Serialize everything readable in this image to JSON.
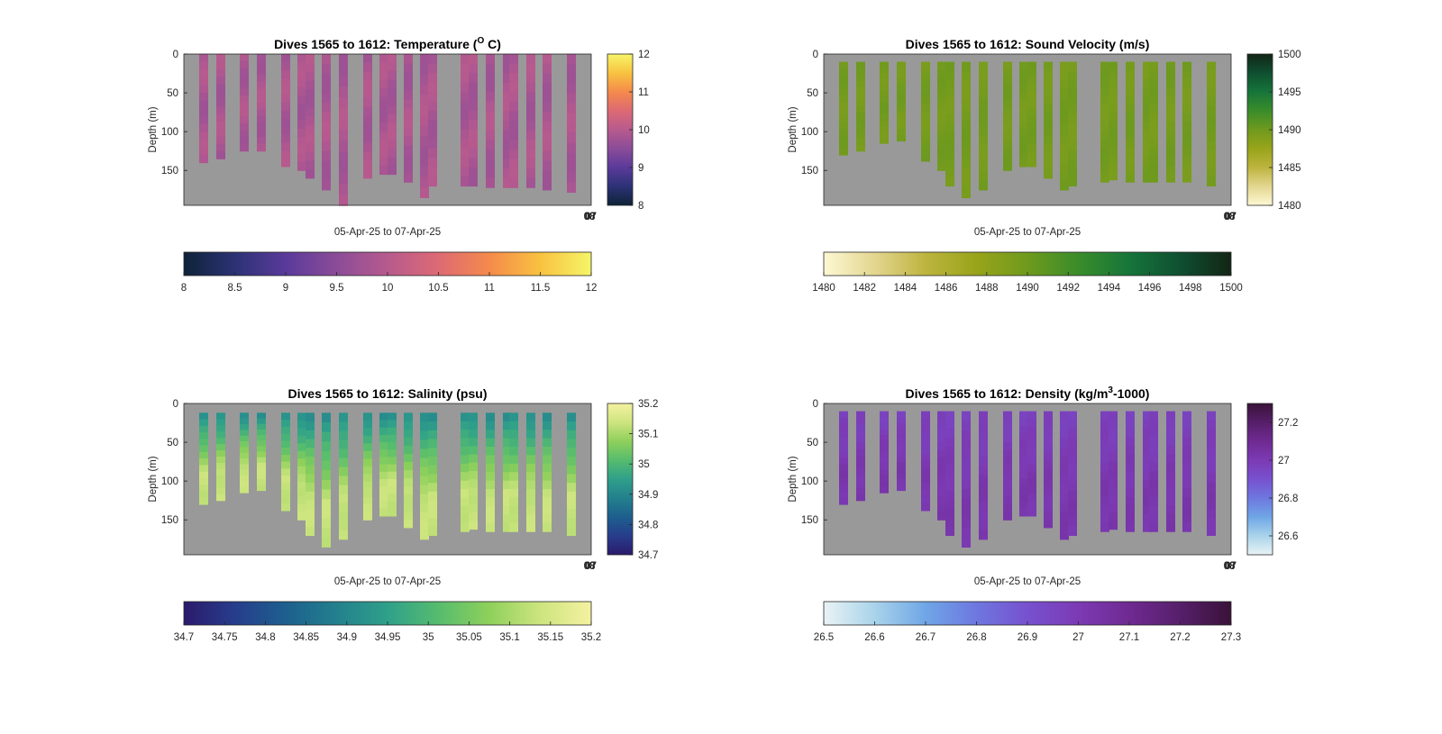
{
  "figure": {
    "background": "#ffffff",
    "land_color": "#999999"
  },
  "chart_data": [
    {
      "type": "heatmap",
      "title": "Dives 1565 to 1612: Temperature (",
      "title_sup": "O",
      "title_end": " C)",
      "xlabel": "05-Apr-25 to 07-Apr-25",
      "ylabel": "Depth (m)",
      "x_tick_labels": [
        "08",
        "07"
      ],
      "ylim": [
        0,
        195
      ],
      "y_ticks": [
        0,
        50,
        100,
        150
      ],
      "color_range": [
        8,
        12
      ],
      "side_colorbar_ticks": [
        "8",
        "9",
        "10",
        "11",
        "12"
      ],
      "bottom_colorbar_ticks": [
        "8",
        "8.5",
        "9",
        "9.5",
        "10",
        "10.5",
        "11",
        "11.5",
        "12"
      ],
      "colormap": [
        "#0d2338",
        "#2c3275",
        "#5a3a9b",
        "#8b4c98",
        "#b75a8e",
        "#dd6a74",
        "#f58a4b",
        "#f8c240",
        "#f6f569"
      ],
      "profile_value": 9.85,
      "profile_variation": 0.15,
      "profile_top": 0,
      "profile_bottoms": [
        140,
        135,
        125,
        125,
        145,
        150,
        160,
        175,
        195,
        160,
        155,
        155,
        165,
        185,
        170,
        170,
        170,
        172,
        172,
        172,
        172,
        175,
        178
      ]
    },
    {
      "type": "heatmap",
      "title": "Dives 1565 to 1612: Sound Velocity (m/s)",
      "title_sup": "",
      "title_end": "",
      "xlabel": "05-Apr-25 to 07-Apr-25",
      "ylabel": "Depth (m)",
      "x_tick_labels": [
        "08",
        "07"
      ],
      "ylim": [
        0,
        195
      ],
      "y_ticks": [
        0,
        50,
        100,
        150
      ],
      "color_range": [
        1480,
        1500
      ],
      "side_colorbar_ticks": [
        "1480",
        "1485",
        "1490",
        "1495",
        "1500"
      ],
      "bottom_colorbar_ticks": [
        "1480",
        "1482",
        "1484",
        "1486",
        "1488",
        "1490",
        "1492",
        "1494",
        "1496",
        "1498",
        "1500"
      ],
      "colormap": [
        "#fdf8d4",
        "#e3d690",
        "#bdb43f",
        "#98a41a",
        "#6f9a1e",
        "#3a8c2a",
        "#16753a",
        "#0f4f31",
        "#132515"
      ],
      "profile_value": 1489.7,
      "profile_variation": 0.4,
      "profile_top": 10,
      "profile_bottoms": [
        130,
        125,
        115,
        112,
        138,
        150,
        170,
        185,
        175,
        150,
        145,
        145,
        160,
        175,
        170,
        165,
        162,
        165,
        165,
        165,
        165,
        165,
        170
      ]
    },
    {
      "type": "heatmap",
      "title": "Dives 1565 to 1612: Salinity (psu)",
      "title_sup": "",
      "title_end": "",
      "xlabel": "05-Apr-25 to 07-Apr-25",
      "ylabel": "Depth (m)",
      "x_tick_labels": [
        "08",
        "07"
      ],
      "ylim": [
        0,
        195
      ],
      "y_ticks": [
        0,
        50,
        100,
        150
      ],
      "color_range": [
        34.7,
        35.2
      ],
      "side_colorbar_ticks": [
        "34.7",
        "34.8",
        "34.9",
        "35",
        "35.1",
        "35.2"
      ],
      "bottom_colorbar_ticks": [
        "34.7",
        "34.75",
        "34.8",
        "34.85",
        "34.9",
        "34.95",
        "35",
        "35.05",
        "35.1",
        "35.15",
        "35.2"
      ],
      "colormap": [
        "#2b1a6b",
        "#273d8c",
        "#1d5f8e",
        "#23808d",
        "#2fa08a",
        "#56bc6e",
        "#8fd05b",
        "#cde57f",
        "#f5f1a0"
      ],
      "profile_value_top": 34.92,
      "profile_value_bottom": 35.13,
      "profile_top": 12,
      "profile_bottoms": [
        130,
        125,
        115,
        112,
        138,
        150,
        170,
        185,
        175,
        150,
        145,
        145,
        160,
        175,
        170,
        165,
        162,
        165,
        165,
        165,
        165,
        165,
        170
      ]
    },
    {
      "type": "heatmap",
      "title": "Dives 1565 to 1612: Density (kg/m",
      "title_sup": "3",
      "title_end": "-1000)",
      "xlabel": "05-Apr-25 to 07-Apr-25",
      "ylabel": "Depth (m)",
      "x_tick_labels": [
        "08",
        "07"
      ],
      "ylim": [
        0,
        195
      ],
      "y_ticks": [
        0,
        50,
        100,
        150
      ],
      "color_range": [
        26.5,
        27.3
      ],
      "side_colorbar_ticks": [
        "26.6",
        "26.8",
        "27",
        "27.2"
      ],
      "bottom_colorbar_ticks": [
        "26.5",
        "26.6",
        "26.7",
        "26.8",
        "26.9",
        "27",
        "27.1",
        "27.2",
        "27.3"
      ],
      "colormap": [
        "#e9f3f5",
        "#a9d3ea",
        "#6fa6e6",
        "#6e77df",
        "#7751cf",
        "#7c3ab4",
        "#6f2a91",
        "#561f6a",
        "#3a1238"
      ],
      "profile_value_top": 26.97,
      "profile_value_bottom": 27.02,
      "profile_top": 10,
      "profile_bottoms": [
        130,
        125,
        115,
        112,
        138,
        150,
        170,
        185,
        175,
        150,
        145,
        145,
        160,
        175,
        170,
        165,
        162,
        165,
        165,
        165,
        165,
        165,
        170
      ]
    }
  ]
}
